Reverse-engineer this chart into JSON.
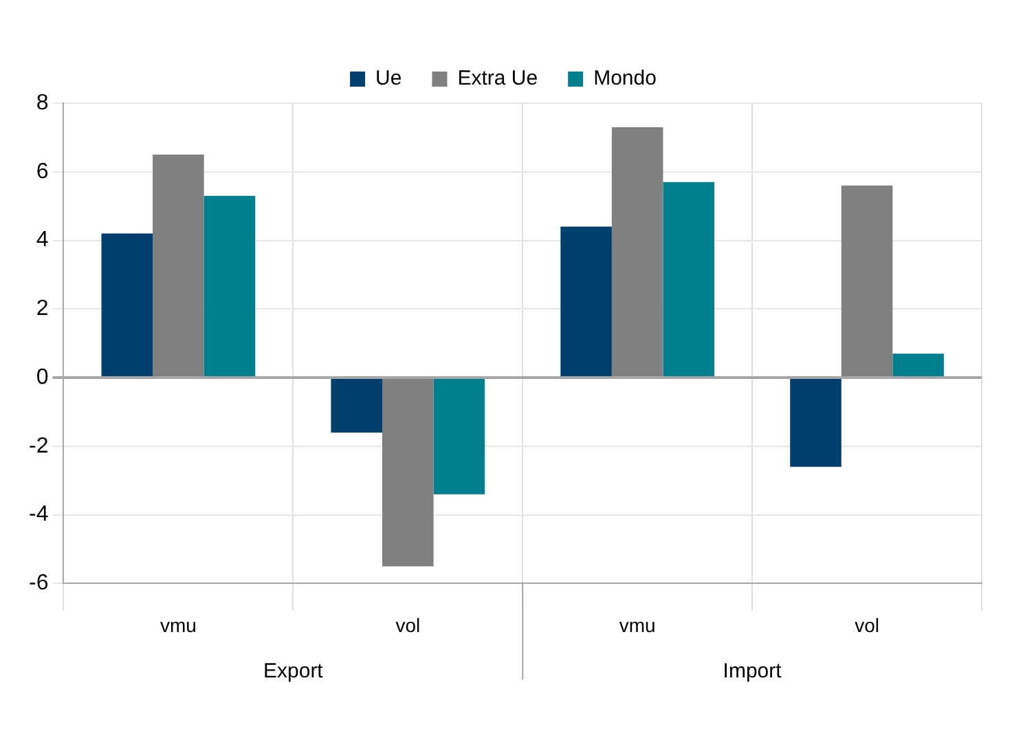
{
  "chart_data": {
    "type": "bar",
    "categories": [
      "vmu",
      "vol",
      "vmu",
      "vol"
    ],
    "series": [
      {
        "name": "Ue",
        "color": "#003f6e",
        "values": [
          4.2,
          -1.6,
          4.4,
          -2.6
        ]
      },
      {
        "name": "Extra Ue",
        "color": "#808080",
        "values": [
          6.5,
          -5.5,
          7.3,
          5.6
        ]
      },
      {
        "name": "Mondo",
        "color": "#00808f",
        "values": [
          5.3,
          -3.4,
          5.7,
          0.7
        ]
      }
    ],
    "ylim": [
      -6,
      8
    ],
    "yticks": [
      -6,
      -4,
      -2,
      0,
      2,
      4,
      6,
      8
    ],
    "grid": true,
    "legend": "top",
    "annotations": [
      "Export",
      "Import"
    ]
  }
}
